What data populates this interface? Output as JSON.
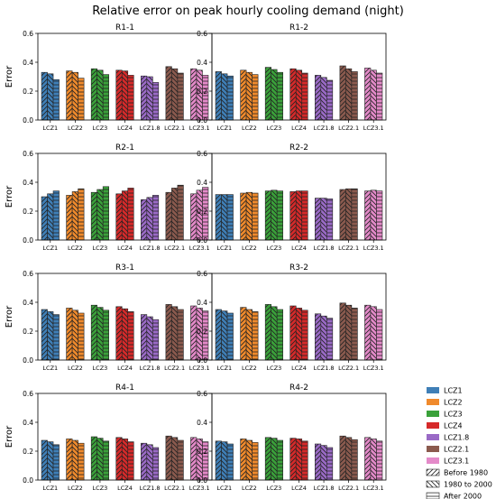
{
  "title": "Relative error on peak hourly cooling demand (night)",
  "colors": {
    "LCZ1": "#3f7fb7",
    "LCZ2": "#f08a2c",
    "LCZ3": "#3aa13a",
    "LCZ4": "#d62a2a",
    "LCZ1.8": "#9a6ac6",
    "LCZ2.1": "#8b5a4e",
    "LCZ3.1": "#e48ac9"
  },
  "legend": {
    "series": [
      "LCZ1",
      "LCZ2",
      "LCZ3",
      "LCZ4",
      "LCZ1.8",
      "LCZ2.1",
      "LCZ3.1"
    ],
    "periods": [
      "Before 1980",
      "1980 to 2000",
      "After 2000"
    ]
  },
  "chart_data": [
    {
      "type": "bar",
      "title": "R1-1",
      "ylabel": "Error",
      "ylim": [
        0,
        0.6
      ],
      "yticks": [
        "0.0",
        "0.2",
        "0.4",
        "0.6"
      ],
      "categories": [
        "LCZ1",
        "LCZ2",
        "LCZ3",
        "LCZ4",
        "LCZ1.8",
        "LCZ2.1",
        "LCZ3.1"
      ],
      "series": [
        {
          "name": "Before 1980",
          "values": [
            0.33,
            0.34,
            0.355,
            0.345,
            0.305,
            0.37,
            0.355
          ]
        },
        {
          "name": "1980 to 2000",
          "values": [
            0.32,
            0.33,
            0.345,
            0.34,
            0.3,
            0.355,
            0.345
          ]
        },
        {
          "name": "After 2000",
          "values": [
            0.28,
            0.29,
            0.315,
            0.31,
            0.26,
            0.325,
            0.31
          ]
        }
      ]
    },
    {
      "type": "bar",
      "title": "R1-2",
      "ylabel": "",
      "ylim": [
        0,
        0.6
      ],
      "yticks": [
        "0.0",
        "0.2",
        "0.4",
        "0.6"
      ],
      "categories": [
        "LCZ1",
        "LCZ2",
        "LCZ3",
        "LCZ4",
        "LCZ1.8",
        "LCZ2.1",
        "LCZ3.1"
      ],
      "series": [
        {
          "name": "Before 1980",
          "values": [
            0.335,
            0.345,
            0.365,
            0.355,
            0.31,
            0.375,
            0.36
          ]
        },
        {
          "name": "1980 to 2000",
          "values": [
            0.32,
            0.33,
            0.35,
            0.345,
            0.295,
            0.355,
            0.345
          ]
        },
        {
          "name": "After 2000",
          "values": [
            0.305,
            0.315,
            0.33,
            0.325,
            0.275,
            0.335,
            0.325
          ]
        }
      ]
    },
    {
      "type": "bar",
      "title": "R2-1",
      "ylabel": "Error",
      "ylim": [
        0,
        0.6
      ],
      "yticks": [
        "0.0",
        "0.2",
        "0.4",
        "0.6"
      ],
      "categories": [
        "LCZ1",
        "LCZ2",
        "LCZ3",
        "LCZ4",
        "LCZ1.8",
        "LCZ2.1",
        "LCZ3.1"
      ],
      "series": [
        {
          "name": "Before 1980",
          "values": [
            0.3,
            0.31,
            0.33,
            0.32,
            0.28,
            0.33,
            0.32
          ]
        },
        {
          "name": "1980 to 2000",
          "values": [
            0.32,
            0.335,
            0.35,
            0.34,
            0.295,
            0.36,
            0.345
          ]
        },
        {
          "name": "After 2000",
          "values": [
            0.34,
            0.355,
            0.37,
            0.36,
            0.31,
            0.38,
            0.365
          ]
        }
      ]
    },
    {
      "type": "bar",
      "title": "R2-2",
      "ylabel": "",
      "ylim": [
        0,
        0.6
      ],
      "yticks": [
        "0.0",
        "0.2",
        "0.4",
        "0.6"
      ],
      "categories": [
        "LCZ1",
        "LCZ2",
        "LCZ3",
        "LCZ4",
        "LCZ1.8",
        "LCZ2.1",
        "LCZ3.1"
      ],
      "series": [
        {
          "name": "Before 1980",
          "values": [
            0.315,
            0.325,
            0.34,
            0.335,
            0.29,
            0.35,
            0.34
          ]
        },
        {
          "name": "1980 to 2000",
          "values": [
            0.315,
            0.33,
            0.345,
            0.34,
            0.29,
            0.355,
            0.345
          ]
        },
        {
          "name": "After 2000",
          "values": [
            0.315,
            0.325,
            0.34,
            0.34,
            0.285,
            0.355,
            0.34
          ]
        }
      ]
    },
    {
      "type": "bar",
      "title": "R3-1",
      "ylabel": "Error",
      "ylim": [
        0,
        0.6
      ],
      "yticks": [
        "0.0",
        "0.2",
        "0.4",
        "0.6"
      ],
      "categories": [
        "LCZ1",
        "LCZ2",
        "LCZ3",
        "LCZ4",
        "LCZ1.8",
        "LCZ2.1",
        "LCZ3.1"
      ],
      "series": [
        {
          "name": "Before 1980",
          "values": [
            0.35,
            0.36,
            0.38,
            0.37,
            0.315,
            0.385,
            0.375
          ]
        },
        {
          "name": "1980 to 2000",
          "values": [
            0.335,
            0.345,
            0.365,
            0.355,
            0.3,
            0.37,
            0.36
          ]
        },
        {
          "name": "After 2000",
          "values": [
            0.315,
            0.325,
            0.345,
            0.335,
            0.28,
            0.35,
            0.34
          ]
        }
      ]
    },
    {
      "type": "bar",
      "title": "R3-2",
      "ylabel": "",
      "ylim": [
        0,
        0.6
      ],
      "yticks": [
        "0.0",
        "0.2",
        "0.4",
        "0.6"
      ],
      "categories": [
        "LCZ1",
        "LCZ2",
        "LCZ3",
        "LCZ4",
        "LCZ1.8",
        "LCZ2.1",
        "LCZ3.1"
      ],
      "series": [
        {
          "name": "Before 1980",
          "values": [
            0.35,
            0.365,
            0.385,
            0.375,
            0.32,
            0.395,
            0.38
          ]
        },
        {
          "name": "1980 to 2000",
          "values": [
            0.34,
            0.35,
            0.37,
            0.36,
            0.305,
            0.38,
            0.37
          ]
        },
        {
          "name": "After 2000",
          "values": [
            0.325,
            0.335,
            0.35,
            0.345,
            0.29,
            0.36,
            0.35
          ]
        }
      ]
    },
    {
      "type": "bar",
      "title": "R4-1",
      "ylabel": "Error",
      "ylim": [
        0,
        0.6
      ],
      "yticks": [
        "0.0",
        "0.2",
        "0.4",
        "0.6"
      ],
      "categories": [
        "LCZ1",
        "LCZ2",
        "LCZ3",
        "LCZ4",
        "LCZ1.8",
        "LCZ2.1",
        "LCZ3.1"
      ],
      "series": [
        {
          "name": "Before 1980",
          "values": [
            0.275,
            0.285,
            0.3,
            0.295,
            0.255,
            0.305,
            0.295
          ]
        },
        {
          "name": "1980 to 2000",
          "values": [
            0.265,
            0.275,
            0.29,
            0.285,
            0.245,
            0.295,
            0.285
          ]
        },
        {
          "name": "After 2000",
          "values": [
            0.245,
            0.255,
            0.27,
            0.265,
            0.225,
            0.275,
            0.265
          ]
        }
      ]
    },
    {
      "type": "bar",
      "title": "R4-2",
      "ylabel": "",
      "ylim": [
        0,
        0.6
      ],
      "yticks": [
        "0.0",
        "0.2",
        "0.4",
        "0.6"
      ],
      "categories": [
        "LCZ1",
        "LCZ2",
        "LCZ3",
        "LCZ4",
        "LCZ1.8",
        "LCZ2.1",
        "LCZ3.1"
      ],
      "series": [
        {
          "name": "Before 1980",
          "values": [
            0.27,
            0.285,
            0.295,
            0.29,
            0.25,
            0.305,
            0.295
          ]
        },
        {
          "name": "1980 to 2000",
          "values": [
            0.265,
            0.275,
            0.29,
            0.285,
            0.24,
            0.295,
            0.285
          ]
        },
        {
          "name": "After 2000",
          "values": [
            0.25,
            0.26,
            0.275,
            0.27,
            0.225,
            0.28,
            0.27
          ]
        }
      ]
    }
  ]
}
